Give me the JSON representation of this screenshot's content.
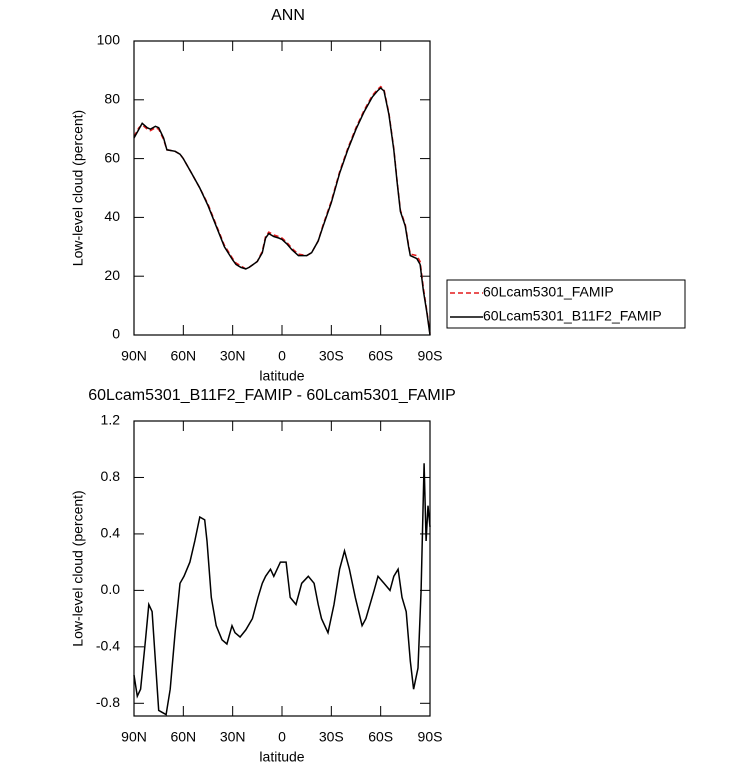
{
  "chart_data": [
    {
      "type": "line",
      "title": "ANN",
      "x_label": "latitude",
      "y_label": "Low-level cloud (percent)",
      "xlim": [
        90,
        -90
      ],
      "ylim": [
        0,
        100
      ],
      "xticks": [
        {
          "value": 90,
          "label": "90N"
        },
        {
          "value": 60,
          "label": "60N"
        },
        {
          "value": 30,
          "label": "30N"
        },
        0,
        {
          "value": -30,
          "label": "30S"
        },
        {
          "value": -60,
          "label": "60S"
        },
        {
          "value": -90,
          "label": "90S"
        }
      ],
      "yticks": [
        0,
        20,
        40,
        60,
        80,
        100
      ],
      "x": [
        90,
        87,
        85,
        82,
        80,
        77,
        75,
        72,
        70,
        65,
        62,
        60,
        55,
        50,
        45,
        40,
        35,
        30,
        28,
        25,
        22,
        20,
        15,
        12,
        10,
        8,
        5,
        2,
        0,
        -3,
        -6,
        -10,
        -15,
        -18,
        -22,
        -25,
        -30,
        -35,
        -40,
        -45,
        -50,
        -55,
        -58,
        -60,
        -62,
        -65,
        -68,
        -70,
        -72,
        -75,
        -77,
        -78,
        -82,
        -84,
        -86,
        -88,
        -90
      ],
      "series": [
        {
          "name": "60Lcam5301_FAMIP",
          "color": "#e41a1c",
          "line_style": "dashed",
          "values": [
            67.5,
            70.5,
            71.5,
            70,
            69.5,
            70.5,
            70,
            66.5,
            63,
            62.5,
            61.5,
            60,
            55,
            50,
            44.5,
            37.5,
            30.5,
            26,
            24.5,
            23.5,
            22.5,
            23,
            25,
            28.5,
            33.5,
            35,
            34,
            33.5,
            33,
            31.5,
            29.5,
            27.5,
            27,
            28,
            32,
            37.5,
            45.5,
            55.5,
            63.5,
            70.5,
            76.5,
            81.5,
            83.5,
            84.5,
            83.5,
            75.5,
            63.5,
            52.5,
            42.5,
            37.5,
            30.5,
            27.5,
            27,
            25,
            16,
            8.5,
            0.5
          ]
        },
        {
          "name": "60Lcam5301_B11F2_FAMIP",
          "color": "#000000",
          "line_style": "solid",
          "values": [
            67,
            70,
            72,
            70.5,
            70,
            71,
            70.5,
            67,
            63,
            62.5,
            61.5,
            60,
            55,
            50,
            44,
            37,
            30,
            25.5,
            24,
            23,
            22.5,
            23,
            25,
            28,
            33,
            34.5,
            33.5,
            33,
            32.5,
            31,
            29,
            27,
            27,
            28,
            32,
            37,
            45,
            55,
            63,
            70,
            76,
            81,
            83,
            84,
            83,
            75,
            63,
            52,
            42,
            37,
            30,
            27,
            26,
            24,
            15,
            8,
            0
          ]
        }
      ]
    },
    {
      "type": "line",
      "title": "60Lcam5301_B11F2_FAMIP - 60Lcam5301_FAMIP",
      "x_label": "latitude",
      "y_label": "Low-level cloud (percent)",
      "xlim": [
        90,
        -90
      ],
      "ylim": [
        -0.89,
        1.2
      ],
      "xticks": [
        {
          "value": 90,
          "label": "90N"
        },
        {
          "value": 60,
          "label": "60N"
        },
        {
          "value": 30,
          "label": "30N"
        },
        0,
        {
          "value": -30,
          "label": "30S"
        },
        {
          "value": -60,
          "label": "60S"
        },
        {
          "value": -90,
          "label": "90S"
        }
      ],
      "yticks": [
        -0.8,
        -0.4,
        {
          "value": 0,
          "label": "0.0"
        },
        0.4,
        0.8,
        1.2
      ],
      "color": "#000000",
      "x": [
        90,
        88,
        86,
        83,
        81,
        79,
        77,
        75,
        72,
        70.5,
        68,
        65,
        62,
        59.6,
        56,
        53,
        50,
        47,
        45.6,
        43,
        40,
        36.5,
        33.5,
        30.4,
        28.6,
        25.5,
        22,
        18,
        14.6,
        12,
        10,
        7,
        5,
        1,
        -2.5,
        -5,
        -8.5,
        -12,
        -16,
        -19.5,
        -22,
        -24,
        -28,
        -31.6,
        -35,
        -38,
        -41,
        -44.6,
        -48.7,
        -51,
        -56,
        -58.4,
        -62,
        -65.7,
        -68,
        -70.6,
        -73,
        -75.5,
        -78,
        -80,
        -82.7,
        -84.6,
        -86.4,
        -87.6,
        -88.8,
        -90
      ],
      "values": [
        -0.6,
        -0.75,
        -0.7,
        -0.35,
        -0.1,
        -0.15,
        -0.5,
        -0.85,
        -0.87,
        -0.88,
        -0.7,
        -0.3,
        0.05,
        0.1,
        0.2,
        0.35,
        0.52,
        0.5,
        0.35,
        -0.05,
        -0.25,
        -0.35,
        -0.38,
        -0.25,
        -0.3,
        -0.33,
        -0.28,
        -0.2,
        -0.05,
        0.05,
        0.1,
        0.15,
        0.1,
        0.2,
        0.2,
        -0.05,
        -0.1,
        0.05,
        0.1,
        0.05,
        -0.1,
        -0.2,
        -0.3,
        -0.1,
        0.15,
        0.28,
        0.15,
        -0.05,
        -0.25,
        -0.2,
        0,
        0.1,
        0.05,
        0,
        0.1,
        0.15,
        -0.05,
        -0.15,
        -0.5,
        -0.7,
        -0.55,
        0,
        0.9,
        0.35,
        0.6,
        0.45
      ]
    }
  ]
}
